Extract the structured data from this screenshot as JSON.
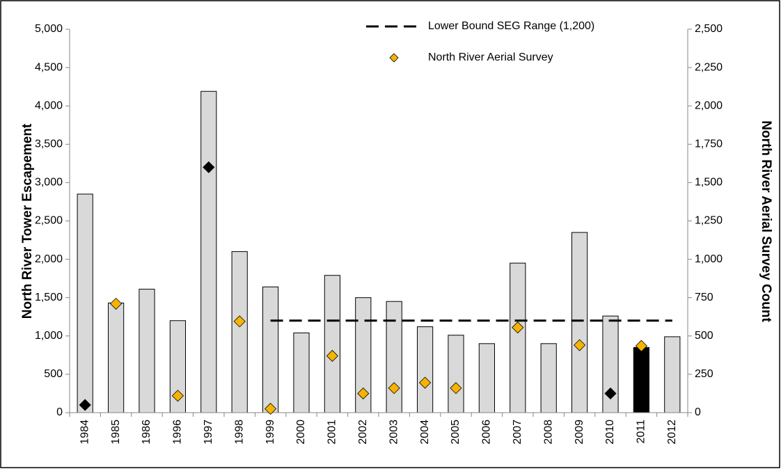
{
  "chart_data": {
    "type": "bar",
    "categories": [
      "1984",
      "1985",
      "1986",
      "1996",
      "1997",
      "1998",
      "1999",
      "2000",
      "2001",
      "2002",
      "2003",
      "2004",
      "2005",
      "2006",
      "2007",
      "2008",
      "2009",
      "2010",
      "2011",
      "2012"
    ],
    "values": [
      2850,
      1430,
      1610,
      1200,
      4190,
      2100,
      1640,
      1040,
      1790,
      1500,
      1450,
      1120,
      1010,
      900,
      1950,
      900,
      2350,
      1260,
      850,
      990
    ],
    "bar_colors": [
      "#d9d9d9",
      "#d9d9d9",
      "#d9d9d9",
      "#d9d9d9",
      "#d9d9d9",
      "#d9d9d9",
      "#d9d9d9",
      "#d9d9d9",
      "#d9d9d9",
      "#d9d9d9",
      "#d9d9d9",
      "#d9d9d9",
      "#d9d9d9",
      "#d9d9d9",
      "#d9d9d9",
      "#d9d9d9",
      "#d9d9d9",
      "#d9d9d9",
      "#000000",
      "#d9d9d9"
    ],
    "ylabel": "North River Tower Escapement",
    "y2label": "North River Aerial Survey Count",
    "ylim": [
      0,
      5000
    ],
    "yticks": [
      0,
      500,
      {
        "value": 1000,
        "label": "1,000"
      },
      {
        "value": 1500,
        "label": "1,500"
      },
      {
        "value": 2000,
        "label": "2,000"
      },
      {
        "value": 2500,
        "label": "2,500"
      },
      {
        "value": 3000,
        "label": "3,000"
      },
      {
        "value": 3500,
        "label": "3,500"
      },
      {
        "value": 4000,
        "label": "4,000"
      },
      {
        "value": 4500,
        "label": "4,500"
      },
      {
        "value": 5000,
        "label": "5,000"
      }
    ],
    "y2lim": [
      0,
      2500
    ],
    "y2ticks": [
      0,
      250,
      500,
      750,
      {
        "value": 1000,
        "label": "1,000"
      },
      {
        "value": 1250,
        "label": "1,250"
      },
      {
        "value": 1500,
        "label": "1,500"
      },
      {
        "value": 1750,
        "label": "1,750"
      },
      {
        "value": 2000,
        "label": "2,000"
      },
      {
        "value": 2250,
        "label": "2,250"
      },
      {
        "value": 2500,
        "label": "2,500"
      }
    ],
    "series": [
      {
        "name": "Lower  Bound SEG Range (1,200)",
        "type": "line",
        "color": "#000000",
        "dashed": true,
        "values": [
          null,
          null,
          null,
          null,
          null,
          null,
          1200,
          1200,
          1200,
          1200,
          1200,
          1200,
          1200,
          1200,
          1200,
          1200,
          1200,
          1200,
          1200,
          1200
        ]
      },
      {
        "name": "North River Aerial Survey",
        "type": "scatter",
        "axis": "y2",
        "color": "#f5b400",
        "values": [
          50,
          710,
          null,
          110,
          1600,
          595,
          25,
          null,
          370,
          125,
          160,
          195,
          160,
          null,
          555,
          null,
          440,
          125,
          435,
          null
        ],
        "colors": [
          "#000000",
          "#f5b400",
          null,
          "#f5b400",
          "#000000",
          "#f5b400",
          "#f5b400",
          null,
          "#f5b400",
          "#f5b400",
          "#f5b400",
          "#f5b400",
          "#f5b400",
          null,
          "#f5b400",
          null,
          "#f5b400",
          "#000000",
          "#f5b400",
          null
        ]
      }
    ]
  }
}
